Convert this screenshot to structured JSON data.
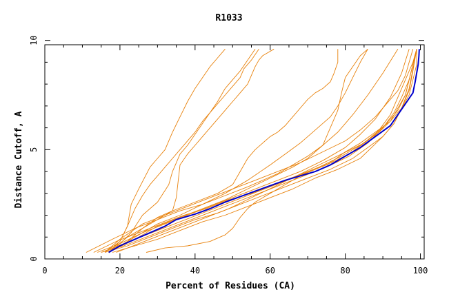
{
  "chart_data": {
    "type": "line",
    "title": "R1033",
    "xlabel": "Percent of Residues (CA)",
    "ylabel": "Distance Cutoff, A",
    "xlim": [
      0,
      101
    ],
    "ylim": [
      0,
      9.8
    ],
    "x_ticks": [
      {
        "value": 0,
        "label": "0"
      },
      {
        "value": 20,
        "label": "20"
      },
      {
        "value": 40,
        "label": "40"
      },
      {
        "value": 60,
        "label": "60"
      },
      {
        "value": 80,
        "label": "80"
      },
      {
        "value": 100,
        "label": "100"
      }
    ],
    "y_ticks": [
      {
        "value": 0,
        "label": "0"
      },
      {
        "value": 5,
        "label": "5"
      },
      {
        "value": 10,
        "label": "10"
      }
    ],
    "colors": {
      "models": "#e8820c",
      "highlight": "#0000cc",
      "axes": "#000000"
    },
    "series": [
      {
        "highlight": false,
        "x": [
          16,
          20,
          22,
          23,
          25,
          28,
          30,
          32,
          34,
          36,
          38,
          40,
          42,
          44,
          46,
          48
        ],
        "y": [
          0.3,
          0.8,
          1.5,
          2.5,
          3.2,
          4.2,
          4.6,
          5.0,
          5.8,
          6.5,
          7.2,
          7.8,
          8.3,
          8.8,
          9.2,
          9.6
        ]
      },
      {
        "highlight": false,
        "x": [
          17,
          20,
          23,
          26,
          30,
          33,
          34,
          35,
          36,
          38,
          40,
          42,
          44,
          46,
          48,
          50,
          52,
          54,
          56
        ],
        "y": [
          0.3,
          0.7,
          1.2,
          2.0,
          2.6,
          3.4,
          4.0,
          4.4,
          4.8,
          5.2,
          5.7,
          6.2,
          6.7,
          7.2,
          7.8,
          8.2,
          8.6,
          9.1,
          9.6
        ]
      },
      {
        "highlight": false,
        "x": [
          17,
          20,
          22,
          24,
          26,
          28,
          30,
          32,
          34,
          36,
          38,
          40,
          42,
          44,
          46,
          48,
          50,
          52,
          53,
          55,
          57
        ],
        "y": [
          0.3,
          0.8,
          1.5,
          2.3,
          2.9,
          3.4,
          3.8,
          4.2,
          4.6,
          5.0,
          5.4,
          5.8,
          6.3,
          6.7,
          7.1,
          7.5,
          7.9,
          8.3,
          8.7,
          9.1,
          9.6
        ]
      },
      {
        "highlight": false,
        "x": [
          17,
          22,
          26,
          30,
          34,
          35,
          36,
          38,
          40,
          42,
          44,
          46,
          48,
          50,
          52,
          54,
          55,
          56,
          57,
          58,
          61
        ],
        "y": [
          0.3,
          0.8,
          1.4,
          1.9,
          2.2,
          2.8,
          4.3,
          4.8,
          5.2,
          5.6,
          6.0,
          6.4,
          6.8,
          7.2,
          7.6,
          8.0,
          8.4,
          8.8,
          9.1,
          9.3,
          9.6
        ]
      },
      {
        "highlight": false,
        "x": [
          17,
          22,
          28,
          34,
          40,
          46,
          50,
          52,
          54,
          56,
          58,
          60,
          62,
          64,
          66,
          68,
          70,
          72,
          74,
          76,
          77,
          78,
          78
        ],
        "y": [
          0.3,
          1.0,
          1.6,
          2.2,
          2.6,
          3.0,
          3.4,
          4.0,
          4.6,
          5.0,
          5.3,
          5.6,
          5.8,
          6.1,
          6.5,
          6.9,
          7.3,
          7.6,
          7.8,
          8.1,
          8.5,
          9.0,
          9.6
        ]
      },
      {
        "highlight": false,
        "x": [
          17,
          24,
          30,
          36,
          42,
          48,
          54,
          60,
          64,
          68,
          72,
          76,
          78,
          80,
          82,
          84,
          86
        ],
        "y": [
          0.3,
          1.0,
          1.6,
          2.0,
          2.5,
          3.0,
          3.6,
          4.3,
          4.8,
          5.3,
          5.9,
          6.5,
          7.0,
          7.6,
          8.3,
          9.0,
          9.6
        ]
      },
      {
        "highlight": false,
        "x": [
          17,
          24,
          30,
          36,
          42,
          48,
          54,
          60,
          66,
          70,
          74,
          76,
          78,
          79,
          80,
          82,
          84,
          86
        ],
        "y": [
          0.3,
          0.9,
          1.5,
          1.9,
          2.3,
          2.7,
          3.2,
          3.7,
          4.2,
          4.6,
          5.2,
          6.0,
          6.8,
          7.6,
          8.3,
          8.8,
          9.3,
          9.6
        ]
      },
      {
        "highlight": false,
        "x": [
          11,
          18,
          24,
          30,
          36,
          42,
          48,
          54,
          58,
          62,
          66,
          70,
          74,
          78,
          82,
          86,
          90,
          94
        ],
        "y": [
          0.3,
          0.9,
          1.4,
          1.8,
          2.2,
          2.5,
          2.9,
          3.3,
          3.6,
          3.9,
          4.3,
          4.7,
          5.2,
          5.8,
          6.6,
          7.5,
          8.5,
          9.6
        ]
      },
      {
        "highlight": false,
        "x": [
          14,
          20,
          26,
          32,
          38,
          44,
          50,
          56,
          62,
          68,
          74,
          80,
          84,
          88,
          92,
          95,
          97
        ],
        "y": [
          0.3,
          0.7,
          1.2,
          1.6,
          2.0,
          2.4,
          2.8,
          3.2,
          3.6,
          4.0,
          4.5,
          5.1,
          5.7,
          6.4,
          7.4,
          8.5,
          9.6
        ]
      },
      {
        "highlight": false,
        "x": [
          15,
          21,
          27,
          33,
          39,
          45,
          51,
          57,
          63,
          69,
          75,
          81,
          85,
          89,
          92,
          94,
          96,
          98,
          99
        ],
        "y": [
          0.3,
          0.7,
          1.1,
          1.5,
          1.9,
          2.3,
          2.7,
          3.1,
          3.5,
          3.9,
          4.3,
          4.8,
          5.3,
          5.9,
          6.6,
          7.4,
          8.2,
          9.0,
          9.6
        ]
      },
      {
        "highlight": false,
        "x": [
          16,
          22,
          28,
          34,
          40,
          46,
          52,
          58,
          64,
          70,
          76,
          82,
          86,
          90,
          93,
          95,
          97,
          98,
          99
        ],
        "y": [
          0.3,
          0.6,
          1.0,
          1.4,
          1.8,
          2.1,
          2.5,
          2.9,
          3.3,
          3.7,
          4.1,
          4.6,
          5.1,
          5.6,
          6.2,
          6.9,
          7.7,
          8.6,
          9.6
        ]
      },
      {
        "highlight": false,
        "x": [
          13,
          19,
          25,
          31,
          37,
          43,
          49,
          55,
          61,
          67,
          73,
          79,
          84,
          88,
          91,
          94,
          96,
          97,
          98,
          99
        ],
        "y": [
          0.3,
          0.8,
          1.2,
          1.6,
          2.0,
          2.3,
          2.7,
          3.0,
          3.4,
          3.8,
          4.2,
          4.7,
          5.2,
          5.7,
          6.2,
          6.8,
          7.5,
          8.2,
          8.9,
          9.6
        ]
      },
      {
        "highlight": false,
        "x": [
          27,
          32,
          38,
          44,
          48,
          50,
          52,
          54,
          56,
          60,
          64,
          68,
          72,
          76,
          80,
          84,
          88,
          92,
          95,
          97,
          98,
          99,
          99
        ],
        "y": [
          0.3,
          0.5,
          0.6,
          0.8,
          1.1,
          1.4,
          1.9,
          2.3,
          2.6,
          3.0,
          3.4,
          3.8,
          4.1,
          4.4,
          4.9,
          5.3,
          5.8,
          6.3,
          6.9,
          7.5,
          8.2,
          8.9,
          9.6
        ]
      },
      {
        "highlight": false,
        "x": [
          18,
          24,
          30,
          36,
          42,
          48,
          54,
          60,
          66,
          72,
          78,
          84,
          87,
          90,
          93,
          95,
          97,
          98,
          99
        ],
        "y": [
          0.3,
          0.6,
          0.9,
          1.3,
          1.7,
          2.0,
          2.4,
          2.8,
          3.2,
          3.7,
          4.1,
          4.6,
          5.1,
          5.6,
          6.2,
          6.9,
          7.8,
          8.7,
          9.6
        ]
      },
      {
        "highlight": false,
        "x": [
          16,
          20,
          26,
          32,
          38,
          44,
          50,
          56,
          62,
          68,
          74,
          80,
          84,
          88,
          91,
          94,
          96,
          97,
          98
        ],
        "y": [
          0.3,
          0.9,
          1.6,
          2.0,
          2.4,
          2.8,
          3.2,
          3.6,
          4.0,
          4.4,
          4.9,
          5.4,
          5.9,
          6.5,
          7.1,
          7.7,
          8.4,
          9.0,
          9.6
        ]
      },
      {
        "highlight": false,
        "x": [
          19,
          25,
          31,
          37,
          43,
          49,
          55,
          61,
          67,
          73,
          79,
          85,
          89,
          92,
          94,
          96,
          97,
          98,
          99
        ],
        "y": [
          0.3,
          0.7,
          1.1,
          1.5,
          1.9,
          2.3,
          2.8,
          3.3,
          3.8,
          4.3,
          4.8,
          5.3,
          5.8,
          6.3,
          6.9,
          7.5,
          8.2,
          8.9,
          9.6
        ]
      },
      {
        "highlight": false,
        "x": [
          15,
          21,
          27,
          33,
          39,
          45,
          51,
          57,
          63,
          69,
          75,
          81,
          86,
          90,
          93,
          95,
          97,
          98,
          99
        ],
        "y": [
          0.3,
          0.6,
          1.0,
          1.4,
          1.8,
          2.2,
          2.6,
          3.0,
          3.4,
          3.8,
          4.2,
          4.7,
          5.3,
          6.0,
          6.7,
          7.4,
          8.2,
          8.9,
          9.6
        ]
      },
      {
        "highlight": true,
        "x": [
          17,
          20,
          24,
          28,
          32,
          35,
          36,
          40,
          44,
          48,
          52,
          56,
          60,
          64,
          68,
          72,
          76,
          80,
          84,
          88,
          92,
          94,
          96,
          98,
          98.6,
          99,
          99.4,
          99.6,
          99.7
        ],
        "y": [
          0.3,
          0.6,
          0.9,
          1.2,
          1.5,
          1.8,
          1.85,
          2.05,
          2.3,
          2.6,
          2.85,
          3.1,
          3.35,
          3.6,
          3.8,
          4.0,
          4.3,
          4.7,
          5.1,
          5.6,
          6.1,
          6.6,
          7.1,
          7.6,
          8.1,
          8.5,
          8.9,
          9.3,
          9.6
        ]
      }
    ]
  }
}
